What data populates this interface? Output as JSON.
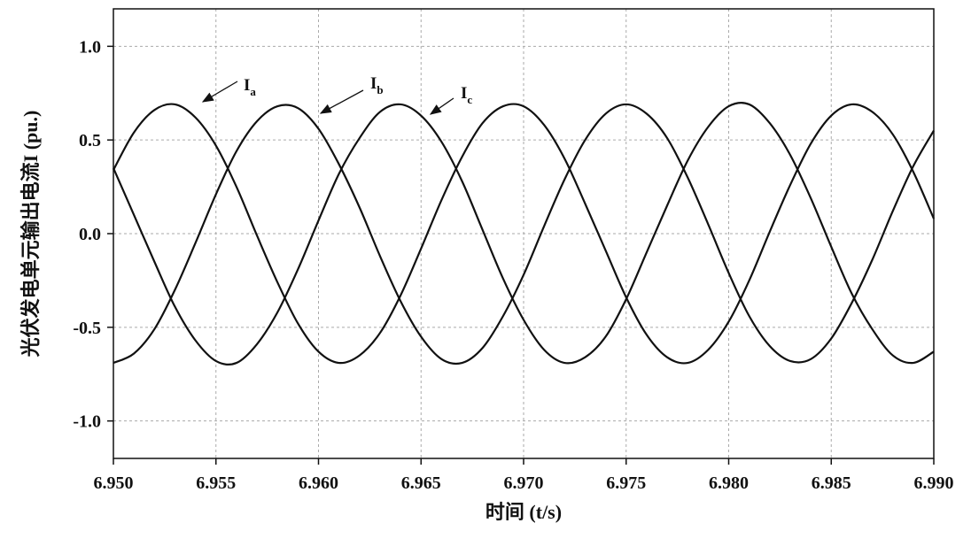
{
  "chart_data": {
    "type": "line",
    "xlabel": "时间 (t/s)",
    "ylabel": "光伏发电单元输出电流I (pu.)",
    "xlim": [
      6.95,
      6.99
    ],
    "ylim": [
      -1.2,
      1.2
    ],
    "xticks": [
      {
        "value": 6.95,
        "label": "6.950"
      },
      {
        "value": 6.955,
        "label": "6.955"
      },
      {
        "value": 6.96,
        "label": "6.960"
      },
      {
        "value": 6.965,
        "label": "6.965"
      },
      {
        "value": 6.97,
        "label": "6.970"
      },
      {
        "value": 6.975,
        "label": "6.975"
      },
      {
        "value": 6.98,
        "label": "6.980"
      },
      {
        "value": 6.985,
        "label": "6.985"
      },
      {
        "value": 6.99,
        "label": "6.990"
      }
    ],
    "yticks": [
      {
        "value": -1.0,
        "label": "-1.0"
      },
      {
        "value": -0.5,
        "label": "-0.5"
      },
      {
        "value": 0.0,
        "label": "0.0"
      },
      {
        "value": 0.5,
        "label": "0.5"
      },
      {
        "value": 1.0,
        "label": "1.0"
      }
    ],
    "grid": true,
    "x": [
      6.95,
      6.951,
      6.952,
      6.953,
      6.954,
      6.955,
      6.956,
      6.957,
      6.958,
      6.959,
      6.96,
      6.961,
      6.962,
      6.963,
      6.964,
      6.965,
      6.966,
      6.967,
      6.968,
      6.969,
      6.97,
      6.971,
      6.972,
      6.973,
      6.974,
      6.975,
      6.976,
      6.977,
      6.978,
      6.979,
      6.98,
      6.981,
      6.982,
      6.983,
      6.984,
      6.985,
      6.986,
      6.987,
      6.988,
      6.989,
      6.99
    ],
    "series": [
      {
        "color": "#111111",
        "values": [
          0.34,
          0.54,
          0.66,
          0.69,
          0.62,
          0.47,
          0.25,
          -0.01,
          -0.26,
          -0.48,
          -0.63,
          -0.69,
          -0.65,
          -0.53,
          -0.33,
          -0.08,
          0.18,
          0.41,
          0.59,
          0.68,
          0.68,
          0.58,
          0.4,
          0.16,
          -0.09,
          -0.34,
          -0.54,
          -0.66,
          -0.69,
          -0.62,
          -0.47,
          -0.25,
          0.01,
          0.26,
          0.48,
          0.63,
          0.69,
          0.65,
          0.53,
          0.33,
          0.08
        ]
      },
      {
        "color": "#111111",
        "values": [
          -0.69,
          -0.64,
          -0.51,
          -0.3,
          -0.05,
          0.21,
          0.44,
          0.6,
          0.68,
          0.67,
          0.56,
          0.37,
          0.14,
          -0.12,
          -0.36,
          -0.55,
          -0.67,
          -0.69,
          -0.61,
          -0.44,
          -0.22,
          0.04,
          0.29,
          0.5,
          0.64,
          0.69,
          0.64,
          0.51,
          0.3,
          0.05,
          -0.21,
          -0.44,
          -0.6,
          -0.68,
          -0.67,
          -0.56,
          -0.37,
          -0.14,
          0.12,
          0.36,
          0.55
        ]
      },
      {
        "color": "#111111",
        "values": [
          0.35,
          0.1,
          -0.15,
          -0.39,
          -0.57,
          -0.68,
          -0.69,
          -0.59,
          -0.42,
          -0.19,
          0.07,
          0.32,
          0.51,
          0.65,
          0.69,
          0.63,
          0.49,
          0.28,
          0.02,
          -0.24,
          -0.46,
          -0.62,
          -0.69,
          -0.66,
          -0.55,
          -0.35,
          -0.1,
          0.15,
          0.39,
          0.57,
          0.68,
          0.69,
          0.59,
          0.42,
          0.19,
          -0.07,
          -0.32,
          -0.51,
          -0.65,
          -0.69,
          -0.63
        ]
      }
    ],
    "annotations": [
      {
        "text": "I",
        "subscript": "a"
      },
      {
        "text": "I",
        "subscript": "b"
      },
      {
        "text": "I",
        "subscript": "c"
      }
    ]
  }
}
